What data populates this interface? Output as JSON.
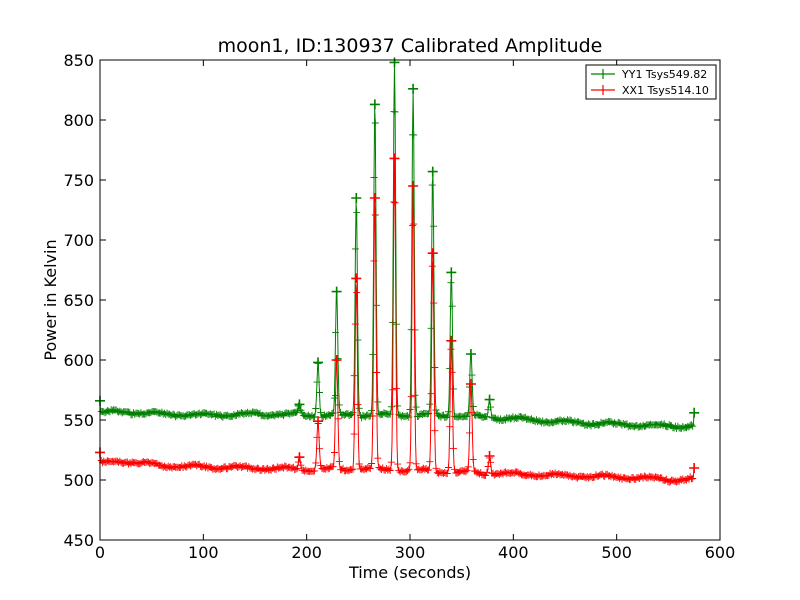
{
  "chart_data": {
    "type": "line",
    "title": "moon1, ID:130937 Calibrated Amplitude",
    "xlabel": "Time (seconds)",
    "ylabel": "Power in Kelvin",
    "xlim": [
      0,
      600
    ],
    "ylim": [
      450,
      850
    ],
    "xticks": [
      0,
      100,
      200,
      300,
      400,
      500,
      600
    ],
    "yticks": [
      450,
      500,
      550,
      600,
      650,
      700,
      750,
      800,
      850
    ],
    "grid": false,
    "legend_position": "top-right",
    "series": [
      {
        "name": "YY1 Tsys549.82",
        "color": "#008000",
        "baseline": [
          [
            0,
            556
          ],
          [
            20,
            557
          ],
          [
            60,
            555
          ],
          [
            100,
            554
          ],
          [
            150,
            555
          ],
          [
            200,
            554
          ],
          [
            260,
            554
          ],
          [
            300,
            554
          ],
          [
            360,
            553
          ],
          [
            400,
            551
          ],
          [
            440,
            549
          ],
          [
            480,
            547
          ],
          [
            520,
            546
          ],
          [
            560,
            545
          ],
          [
            575,
            545
          ]
        ],
        "peaks": [
          [
            193,
            563
          ],
          [
            211,
            598
          ],
          [
            229,
            657
          ],
          [
            248,
            735
          ],
          [
            266,
            813
          ],
          [
            285,
            848
          ],
          [
            303,
            826
          ],
          [
            322,
            757
          ],
          [
            340,
            673
          ],
          [
            359,
            605
          ],
          [
            377,
            567
          ]
        ],
        "endpoints": [
          [
            0,
            566
          ],
          [
            575,
            556
          ]
        ]
      },
      {
        "name": "XX1 Tsys514.10",
        "color": "#ff0000",
        "baseline": [
          [
            0,
            514
          ],
          [
            20,
            516
          ],
          [
            60,
            512
          ],
          [
            100,
            511
          ],
          [
            150,
            510
          ],
          [
            200,
            509
          ],
          [
            260,
            509
          ],
          [
            300,
            508
          ],
          [
            360,
            506
          ],
          [
            400,
            505
          ],
          [
            440,
            504
          ],
          [
            480,
            503
          ],
          [
            520,
            502
          ],
          [
            560,
            500
          ],
          [
            575,
            501
          ]
        ],
        "peaks": [
          [
            193,
            519
          ],
          [
            211,
            549
          ],
          [
            229,
            600
          ],
          [
            248,
            668
          ],
          [
            266,
            735
          ],
          [
            285,
            768
          ],
          [
            303,
            745
          ],
          [
            322,
            689
          ],
          [
            340,
            616
          ],
          [
            359,
            580
          ],
          [
            377,
            520
          ]
        ],
        "endpoints": [
          [
            0,
            523
          ],
          [
            575,
            510
          ]
        ]
      }
    ]
  }
}
